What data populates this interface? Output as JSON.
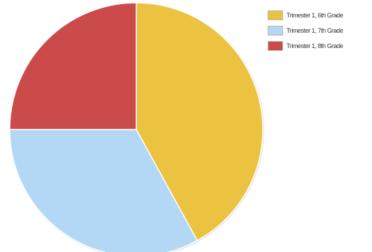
{
  "chart_data": {
    "type": "pie",
    "title": "",
    "legend_position": "top-right",
    "start_angle_deg": 0,
    "direction": "clockwise",
    "slices": [
      {
        "name": "Trimester 1, 6th Grade",
        "value": 42,
        "color": "#ecc241"
      },
      {
        "name": "Trimester 1, 7th Grade",
        "value": 33,
        "color": "#b3d8f6"
      },
      {
        "name": "Trimester 1, 8th Grade",
        "value": 25,
        "color": "#cb4b4b"
      }
    ]
  }
}
